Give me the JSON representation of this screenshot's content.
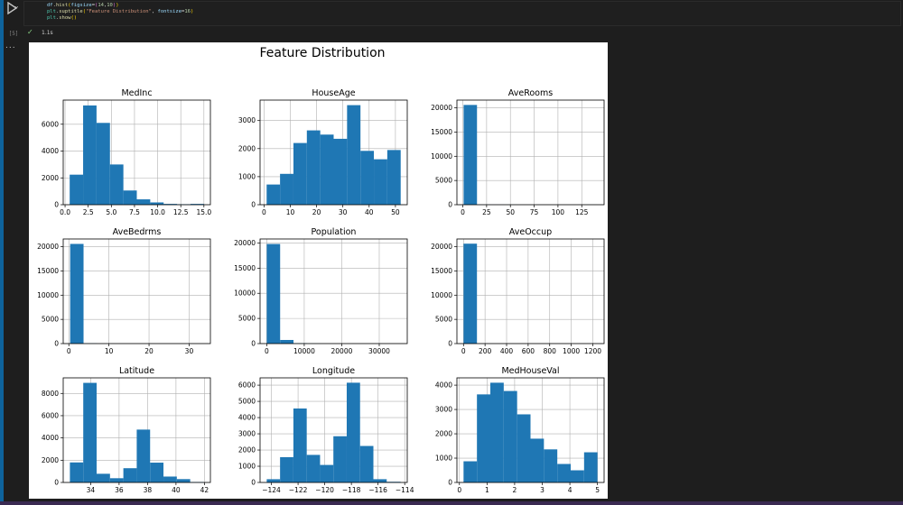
{
  "notebook": {
    "code_lines": [
      [
        {
          "t": "df",
          "c": "#9cdcfe"
        },
        {
          "t": ".",
          "c": "#d4d4d4"
        },
        {
          "t": "hist",
          "c": "#dcdcaa"
        },
        {
          "t": "(",
          "c": "#ffd700"
        },
        {
          "t": "figsize",
          "c": "#9cdcfe"
        },
        {
          "t": "=",
          "c": "#d4d4d4"
        },
        {
          "t": "(",
          "c": "#da70d6"
        },
        {
          "t": "14",
          "c": "#b5cea8"
        },
        {
          "t": ",",
          "c": "#d4d4d4"
        },
        {
          "t": "10",
          "c": "#b5cea8"
        },
        {
          "t": ")",
          "c": "#da70d6"
        },
        {
          "t": ")",
          "c": "#ffd700"
        }
      ],
      [
        {
          "t": "plt",
          "c": "#4ec9b0"
        },
        {
          "t": ".",
          "c": "#d4d4d4"
        },
        {
          "t": "suptitle",
          "c": "#dcdcaa"
        },
        {
          "t": "(",
          "c": "#ffd700"
        },
        {
          "t": "\"Feature Distribution\"",
          "c": "#ce9178"
        },
        {
          "t": ", ",
          "c": "#d4d4d4"
        },
        {
          "t": "fontsize",
          "c": "#9cdcfe"
        },
        {
          "t": "=",
          "c": "#d4d4d4"
        },
        {
          "t": "16",
          "c": "#b5cea8"
        },
        {
          "t": ")",
          "c": "#ffd700"
        }
      ],
      [
        {
          "t": "plt",
          "c": "#4ec9b0"
        },
        {
          "t": ".",
          "c": "#d4d4d4"
        },
        {
          "t": "show",
          "c": "#dcdcaa"
        },
        {
          "t": "()",
          "c": "#ffd700"
        }
      ]
    ],
    "exec_count": "[5]",
    "exec_time": "1.1s",
    "status_icon": "check-icon",
    "ellipsis": "...",
    "colors": {
      "bar": "#1f77b4",
      "grid": "#b0b0b0",
      "background": "#1e1e1e",
      "accent": "#0e639c"
    }
  },
  "figure": {
    "suptitle": "Feature Distribution"
  },
  "chart_data": [
    {
      "type": "bar",
      "title": "MedInc",
      "bin_edges": [
        0.5,
        1.95,
        3.4,
        4.85,
        6.3,
        7.75,
        9.2,
        10.65,
        12.1,
        13.55,
        15.0
      ],
      "counts": [
        2240,
        7400,
        6100,
        3000,
        1060,
        400,
        170,
        60,
        35,
        60
      ],
      "xlim": [
        -0.2,
        15.7
      ],
      "ylim": [
        0,
        7800
      ],
      "xticks": [
        0.0,
        2.5,
        5.0,
        7.5,
        10.0,
        12.5,
        15.0
      ],
      "xtick_labels": [
        "0.0",
        "2.5",
        "5.0",
        "7.5",
        "10.0",
        "12.5",
        "15.0"
      ],
      "yticks": [
        0,
        2000,
        4000,
        6000
      ],
      "ytick_labels": [
        "0",
        "2000",
        "4000",
        "6000"
      ],
      "grid": true
    },
    {
      "type": "bar",
      "title": "HouseAge",
      "bin_edges": [
        1,
        6.1,
        11.2,
        16.3,
        21.4,
        26.5,
        31.6,
        36.7,
        41.8,
        46.9,
        52
      ],
      "counts": [
        720,
        1100,
        2200,
        2650,
        2500,
        2350,
        3550,
        1920,
        1620,
        1950
      ],
      "xlim": [
        -1.5,
        54.5
      ],
      "ylim": [
        0,
        3730
      ],
      "xticks": [
        0,
        10,
        20,
        30,
        40,
        50
      ],
      "xtick_labels": [
        "0",
        "10",
        "20",
        "30",
        "40",
        "50"
      ],
      "yticks": [
        0,
        1000,
        2000,
        3000
      ],
      "ytick_labels": [
        "0",
        "1000",
        "2000",
        "3000"
      ],
      "grid": true
    },
    {
      "type": "bar",
      "title": "AveRooms",
      "bin_edges": [
        0.85,
        14.9,
        28.95,
        43.0,
        57.05,
        71.1,
        85.15,
        99.2,
        113.25,
        127.3,
        141.35
      ],
      "counts": [
        20600,
        28,
        5,
        2,
        1,
        1,
        1,
        0,
        0,
        2
      ],
      "xlim": [
        -6.2,
        148.5
      ],
      "ylim": [
        0,
        21600
      ],
      "xticks": [
        0,
        25,
        50,
        75,
        100,
        125
      ],
      "xtick_labels": [
        "0",
        "25",
        "50",
        "75",
        "100",
        "125"
      ],
      "yticks": [
        0,
        5000,
        10000,
        15000,
        20000
      ],
      "ytick_labels": [
        "0",
        "5000",
        "10000",
        "15000",
        "20000"
      ],
      "grid": true
    },
    {
      "type": "bar",
      "title": "AveBedrms",
      "bin_edges": [
        0.33,
        3.67,
        7.0,
        10.33,
        13.67,
        17.0,
        20.33,
        23.67,
        27.0,
        30.33,
        33.67
      ],
      "counts": [
        20580,
        40,
        6,
        2,
        2,
        1,
        0,
        0,
        0,
        1
      ],
      "xlim": [
        -1.4,
        35.3
      ],
      "ylim": [
        0,
        21600
      ],
      "xticks": [
        0,
        10,
        20,
        30
      ],
      "xtick_labels": [
        "0",
        "10",
        "20",
        "30"
      ],
      "yticks": [
        0,
        5000,
        10000,
        15000,
        20000
      ],
      "ytick_labels": [
        "0",
        "5000",
        "10000",
        "15000",
        "20000"
      ],
      "grid": true
    },
    {
      "type": "bar",
      "title": "Population",
      "bin_edges": [
        3,
        3570,
        7138,
        10706,
        14274,
        17842,
        21410,
        24978,
        28546,
        32114,
        35682
      ],
      "counts": [
        19800,
        720,
        70,
        15,
        5,
        2,
        1,
        0,
        0,
        1
      ],
      "xlim": [
        -1780,
        37470
      ],
      "ylim": [
        0,
        20800
      ],
      "xticks": [
        0,
        10000,
        20000,
        30000
      ],
      "xtick_labels": [
        "0",
        "10000",
        "20000",
        "30000"
      ],
      "yticks": [
        0,
        5000,
        10000,
        15000,
        20000
      ],
      "ytick_labels": [
        "0",
        "5000",
        "10000",
        "15000",
        "20000"
      ],
      "grid": true
    },
    {
      "type": "bar",
      "title": "AveOccup",
      "bin_edges": [
        0.7,
        124.9,
        249.2,
        373.4,
        497.7,
        621.9,
        746.2,
        870.4,
        994.6,
        1118.9,
        1243.3
      ],
      "counts": [
        20630,
        6,
        1,
        1,
        0,
        0,
        0,
        0,
        0,
        1
      ],
      "xlim": [
        -61,
        1305
      ],
      "ylim": [
        0,
        21600
      ],
      "xticks": [
        0,
        200,
        400,
        600,
        800,
        1000,
        1200
      ],
      "xtick_labels": [
        "0",
        "200",
        "400",
        "600",
        "800",
        "1000",
        "1200"
      ],
      "yticks": [
        0,
        5000,
        10000,
        15000,
        20000
      ],
      "ytick_labels": [
        "0",
        "5000",
        "10000",
        "15000",
        "20000"
      ],
      "grid": true
    },
    {
      "type": "bar",
      "title": "Latitude",
      "bin_edges": [
        32.54,
        33.48,
        34.42,
        35.36,
        36.3,
        37.24,
        38.18,
        39.12,
        40.06,
        41.0,
        41.95
      ],
      "counts": [
        1800,
        8950,
        780,
        380,
        1280,
        4750,
        1780,
        530,
        300,
        40
      ],
      "xlim": [
        32.07,
        42.42
      ],
      "ylim": [
        0,
        9400
      ],
      "xticks": [
        34,
        36,
        38,
        40,
        42
      ],
      "xtick_labels": [
        "34",
        "36",
        "38",
        "40",
        "42"
      ],
      "yticks": [
        0,
        2000,
        4000,
        6000,
        8000
      ],
      "ytick_labels": [
        "0",
        "2000",
        "4000",
        "6000",
        "8000"
      ],
      "grid": true
    },
    {
      "type": "bar",
      "title": "Longitude",
      "bin_edges": [
        -124.35,
        -123.35,
        -122.35,
        -121.35,
        -120.35,
        -119.35,
        -118.35,
        -117.35,
        -116.35,
        -115.35,
        -114.31
      ],
      "counts": [
        200,
        1560,
        4560,
        1700,
        1080,
        2850,
        6150,
        2250,
        200,
        40
      ],
      "xlim": [
        -124.85,
        -113.81
      ],
      "ylim": [
        0,
        6450
      ],
      "xticks": [
        -124,
        -122,
        -120,
        -118,
        -116,
        -114
      ],
      "xtick_labels": [
        "−124",
        "−122",
        "−120",
        "−118",
        "−116",
        "−114"
      ],
      "yticks": [
        0,
        1000,
        2000,
        3000,
        4000,
        5000,
        6000
      ],
      "ytick_labels": [
        "0",
        "1000",
        "2000",
        "3000",
        "4000",
        "5000",
        "6000"
      ],
      "grid": true
    },
    {
      "type": "bar",
      "title": "MedHouseVal",
      "bin_edges": [
        0.15,
        0.635,
        1.12,
        1.605,
        2.09,
        2.575,
        3.06,
        3.545,
        4.03,
        4.515,
        5.0
      ],
      "counts": [
        870,
        3620,
        4100,
        3760,
        2800,
        1800,
        1360,
        760,
        500,
        1240
      ],
      "xlim": [
        -0.09,
        5.24
      ],
      "ylim": [
        0,
        4300
      ],
      "xticks": [
        0,
        1,
        2,
        3,
        4,
        5
      ],
      "xtick_labels": [
        "0",
        "1",
        "2",
        "3",
        "4",
        "5"
      ],
      "yticks": [
        0,
        1000,
        2000,
        3000,
        4000
      ],
      "ytick_labels": [
        "0",
        "1000",
        "2000",
        "3000",
        "4000"
      ],
      "grid": true
    }
  ]
}
